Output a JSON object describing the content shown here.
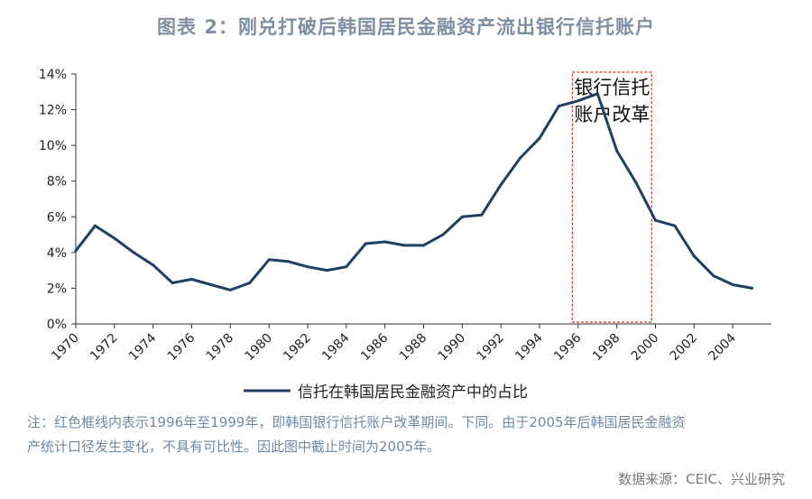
{
  "title": "图表 2：刚兑打破后韩国居民金融资产流出银行信托账户",
  "colors": {
    "title": "#7f8fa2",
    "line": "#1f3f63",
    "axis": "#333333",
    "highlight": "#d9332b",
    "note": "#6e8aa5",
    "source": "#7a7a7a"
  },
  "chart_data": {
    "type": "line",
    "x": [
      1970,
      1971,
      1972,
      1973,
      1974,
      1975,
      1976,
      1977,
      1978,
      1979,
      1980,
      1981,
      1982,
      1983,
      1984,
      1985,
      1986,
      1987,
      1988,
      1989,
      1990,
      1991,
      1992,
      1993,
      1994,
      1995,
      1996,
      1997,
      1998,
      1999,
      2000,
      2001,
      2002,
      2003,
      2004,
      2005
    ],
    "series": [
      {
        "name": "信托在韩国居民金融资产中的占比",
        "values": [
          4.1,
          5.5,
          4.8,
          4.0,
          3.3,
          2.3,
          2.5,
          2.2,
          1.9,
          2.3,
          3.6,
          3.5,
          3.2,
          3.0,
          3.2,
          4.5,
          4.6,
          4.4,
          4.4,
          5.0,
          6.0,
          6.1,
          7.8,
          9.3,
          10.4,
          12.2,
          12.5,
          12.9,
          9.7,
          7.9,
          5.8,
          5.5,
          3.8,
          2.7,
          2.2,
          2.0
        ]
      }
    ],
    "xlim": [
      1970,
      2006
    ],
    "ylim": [
      0,
      14
    ],
    "x_ticks": [
      "1970",
      "1972",
      "1974",
      "1976",
      "1978",
      "1980",
      "1982",
      "1984",
      "1986",
      "1988",
      "1990",
      "1992",
      "1994",
      "1996",
      "1998",
      "2000",
      "2002",
      "2004"
    ],
    "y_ticks": [
      "0%",
      "2%",
      "4%",
      "6%",
      "8%",
      "10%",
      "12%",
      "14%"
    ],
    "grid": false,
    "legend_position": "bottom",
    "highlight": {
      "x_range": [
        1995.7,
        1999.8
      ],
      "label_line1": "银行信托",
      "label_line2": "账户改革"
    }
  },
  "note_line1": "注：红色框线内表示1996年至1999年，即韩国银行信托账户改革期间。下同。由于2005年后韩国居民金融资",
  "note_line2": "产统计口径发生变化，不具有可比性。因此图中截止时间为2005年。",
  "source": "数据来源：CEIC、兴业研究"
}
